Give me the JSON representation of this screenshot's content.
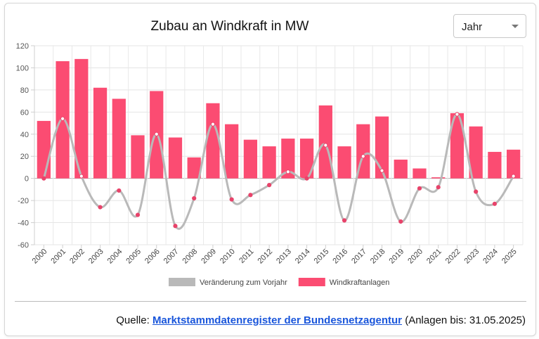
{
  "header": {
    "title": "Zubau an Windkraft in MW"
  },
  "period_select": {
    "selected": "Jahr"
  },
  "footer": {
    "prefix": "Quelle:",
    "link_text": "Marktstammdatenregister der Bundesnetzagentur",
    "suffix": "(Anlagen bis: 31.05.2025)"
  },
  "colors": {
    "bar": "#fb4c72",
    "line": "#b9b9b9",
    "point": "#e8436a"
  },
  "chart_data": {
    "type": "bar",
    "categories": [
      "2000",
      "2001",
      "2002",
      "2003",
      "2004",
      "2005",
      "2006",
      "2007",
      "2008",
      "2009",
      "2010",
      "2011",
      "2012",
      "2013",
      "2014",
      "2015",
      "2016",
      "2017",
      "2018",
      "2019",
      "2020",
      "2021",
      "2022",
      "2023",
      "2024",
      "2025"
    ],
    "series": [
      {
        "name": "Windkraftanlagen",
        "type": "bar",
        "values": [
          52,
          106,
          108,
          82,
          72,
          39,
          79,
          37,
          19,
          68,
          49,
          35,
          29,
          36,
          36,
          66,
          29,
          49,
          56,
          17,
          9,
          1,
          59,
          47,
          24,
          26
        ]
      },
      {
        "name": "Veränderung zum Vorjahr",
        "type": "line",
        "values": [
          0,
          54,
          2,
          -26,
          -11,
          -33,
          40,
          -43,
          -18,
          49,
          -19,
          -15,
          -6,
          6,
          0,
          30,
          -38,
          20,
          7,
          -39,
          -9,
          -8,
          58,
          -12,
          -23,
          2
        ]
      }
    ],
    "y_ticks": [
      "120",
      "100",
      "80",
      "60",
      "40",
      "20",
      "0",
      "-20",
      "-40",
      "-60"
    ],
    "ylim": [
      -60,
      120
    ],
    "grid": true,
    "legend_position": "bottom",
    "legend": [
      "Veränderung zum Vorjahr",
      "Windkraftanlagen"
    ]
  }
}
